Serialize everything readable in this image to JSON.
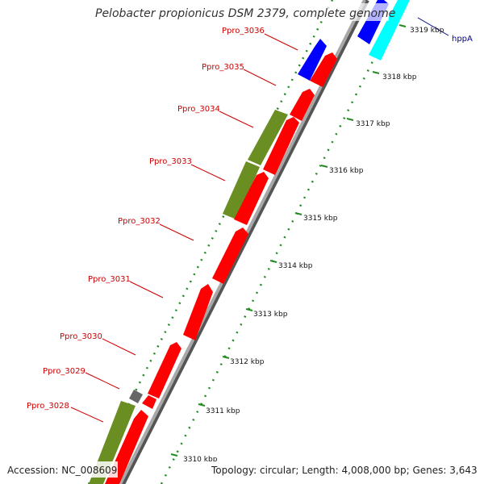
{
  "title": "Pelobacter propionicus DSM 2379, complete genome",
  "accession": "Accession: NC_008609",
  "summary": "Topology: circular; Length: 4,008,000 bp; Genes: 3,643",
  "colors": {
    "backbone": "#909090",
    "forward_cds": "#ff0000",
    "reverse_cds": "#0000ff",
    "reverse_other": "#00ffff",
    "gene_bar": "#6b8e23",
    "gray_feature": "#666666",
    "tick": "#228b22",
    "label_red": "#cc0000",
    "label_blue": "#00008b"
  },
  "kbp_ticks": [
    "3310 kbp",
    "3311 kbp",
    "3312 kbp",
    "3313 kbp",
    "3314 kbp",
    "3315 kbp",
    "3316 kbp",
    "3317 kbp",
    "3318 kbp",
    "3319 kbp"
  ],
  "gene_labels": [
    {
      "name": "Ppro_3028",
      "style": "red"
    },
    {
      "name": "Ppro_3029",
      "style": "red"
    },
    {
      "name": "Ppro_3030",
      "style": "red"
    },
    {
      "name": "Ppro_3031",
      "style": "red"
    },
    {
      "name": "Ppro_3032",
      "style": "red"
    },
    {
      "name": "Ppro_3033",
      "style": "red"
    },
    {
      "name": "Ppro_3034",
      "style": "red"
    },
    {
      "name": "Ppro_3035",
      "style": "red"
    },
    {
      "name": "Ppro_3036",
      "style": "red"
    },
    {
      "name": "hppA",
      "style": "blue"
    }
  ]
}
